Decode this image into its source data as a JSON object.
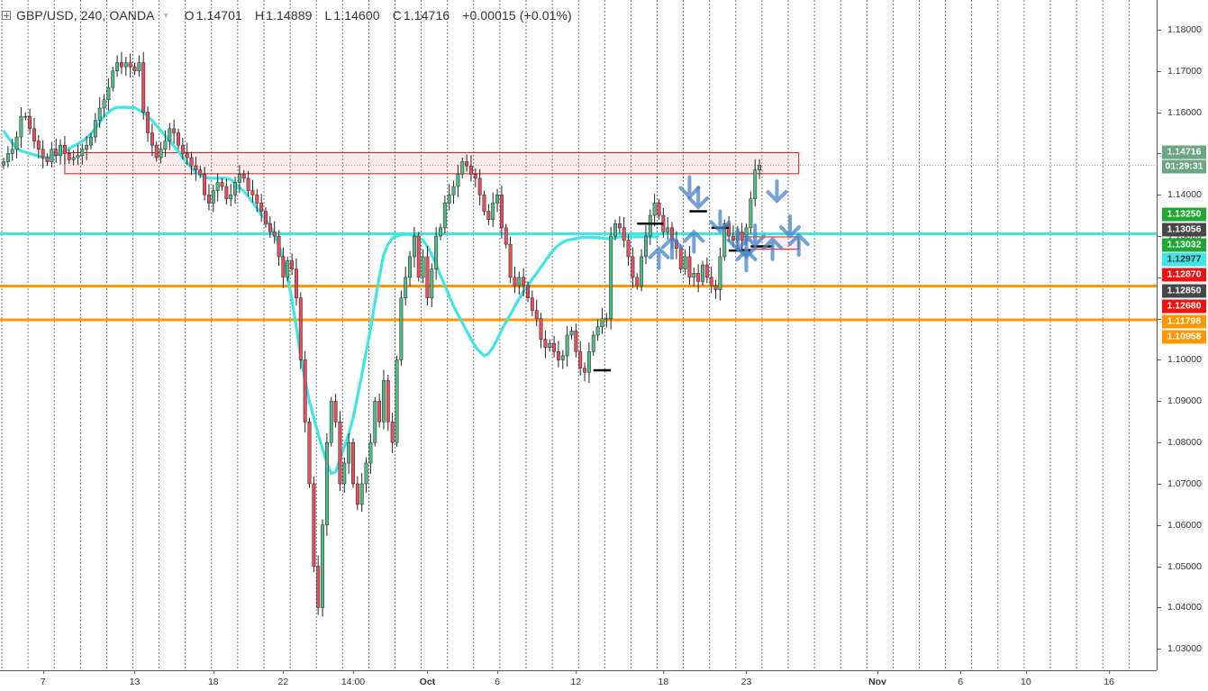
{
  "legend": {
    "symbol": "GBP/USD, 240, OANDA",
    "open_label": "O",
    "open": "1.14701",
    "high_label": "H",
    "high": "1.14889",
    "low_label": "L",
    "low": "1.14600",
    "close_label": "C",
    "close": "1.14716",
    "change": "+0.00015 (+0.01%)"
  },
  "chart_data": {
    "type": "candlestick",
    "title": "GBP/USD, 240, OANDA",
    "ylim": [
      1.027,
      1.185
    ],
    "y_ticks": [
      "1.18000",
      "1.17000",
      "1.16000",
      "1.15000",
      "1.14000",
      "1.13000",
      "1.12000",
      "1.11000",
      "1.10000",
      "1.09000",
      "1.08000",
      "1.07000",
      "1.06000",
      "1.05000",
      "1.04000",
      "1.03000"
    ],
    "x_ticks": [
      "7",
      "13",
      "18",
      "22",
      "14:00",
      "Oct",
      "6",
      "12",
      "18",
      "23",
      "Nov",
      "6",
      "10",
      "16"
    ],
    "x_tick_bar_index": [
      9,
      30,
      48,
      64,
      80,
      97,
      113,
      131,
      151,
      170,
      200,
      219,
      234,
      253
    ],
    "price_labels": [
      {
        "value": "1.14716",
        "color": "#6ba583",
        "text_color": "#ffffff"
      },
      {
        "value": "01:29:31",
        "color": "#6ba583",
        "text_color": "#ffffff",
        "attach": "1.14716"
      },
      {
        "value": "1.13250",
        "color": "#1ea833",
        "text_color": "#ffffff"
      },
      {
        "value": "1.13056",
        "color": "#474747",
        "text_color": "#ffffff"
      },
      {
        "value": "1.13032",
        "color": "#1ea833",
        "text_color": "#ffffff"
      },
      {
        "value": "1.12977",
        "color": "#40e5e5",
        "text_color": "#333333"
      },
      {
        "value": "1.12870",
        "color": "#ee1111",
        "text_color": "#ffffff"
      },
      {
        "value": "1.12850",
        "color": "#474747",
        "text_color": "#ffffff"
      },
      {
        "value": "1.12680",
        "color": "#ee1111",
        "text_color": "#ffffff"
      },
      {
        "value": "1.11798",
        "color": "#ff9800",
        "text_color": "#ffffff"
      },
      {
        "value": "1.10958",
        "color": "#ff9800",
        "text_color": "#ffffff"
      }
    ],
    "horizontal_lines": [
      {
        "value": 1.13056,
        "color": "#40e5e5",
        "style": "solid"
      },
      {
        "value": 1.1179,
        "color": "#ff9800",
        "style": "solid"
      },
      {
        "value": 1.1097,
        "color": "#ff9800",
        "style": "solid"
      },
      {
        "value": 1.14716,
        "color": "#888888",
        "style": "dotted"
      }
    ],
    "zones": [
      {
        "from_bar": 14,
        "to_bar": 182,
        "top": 1.1502,
        "bottom": 1.1451,
        "color": "#ee1111"
      },
      {
        "from_bar": 169,
        "to_bar": 182,
        "top": 1.1298,
        "bottom": 1.1268,
        "color": "#ee1111"
      }
    ],
    "separators_every_bars": 6,
    "candle_colors": {
      "up": "#53b987",
      "down": "#eb4d5c",
      "wick": "#222222"
    },
    "moving_average": {
      "color": "#40e5e5"
    },
    "ma_values": [
      1.1555,
      1.154,
      1.1525,
      1.1513,
      1.1506,
      1.1503,
      1.15,
      1.1497,
      1.1494,
      1.149,
      1.149,
      1.1493,
      1.1497,
      1.15,
      1.1505,
      1.1512,
      1.1518,
      1.1523,
      1.153,
      1.1538,
      1.1548,
      1.156,
      1.1575,
      1.159,
      1.16,
      1.1608,
      1.1612,
      1.1612,
      1.1612,
      1.1611,
      1.1611,
      1.1605,
      1.16,
      1.159,
      1.158,
      1.1568,
      1.1555,
      1.1543,
      1.153,
      1.1518,
      1.1505,
      1.149,
      1.1478,
      1.1465,
      1.1455,
      1.1448,
      1.1443,
      1.144,
      1.144,
      1.144,
      1.144,
      1.144,
      1.1437,
      1.1428,
      1.1418,
      1.1408,
      1.1396,
      1.1382,
      1.1367,
      1.1352,
      1.134,
      1.1325,
      1.1305,
      1.1278,
      1.1245,
      1.12,
      1.1145,
      1.108,
      1.101,
      1.095,
      1.09,
      1.086,
      1.082,
      1.0785,
      1.075,
      1.0725,
      1.0728,
      1.076,
      1.079,
      1.082,
      1.086,
      1.091,
      1.0965,
      1.102,
      1.1075,
      1.114,
      1.12,
      1.1255,
      1.128,
      1.1295,
      1.13,
      1.1303,
      1.1304,
      1.1304,
      1.1302,
      1.1297,
      1.129,
      1.1275,
      1.1255,
      1.123,
      1.1205,
      1.118,
      1.1155,
      1.113,
      1.111,
      1.109,
      1.107,
      1.105,
      1.1032,
      1.102,
      1.101,
      1.1015,
      1.103,
      1.105,
      1.1072,
      1.1092,
      1.111,
      1.113,
      1.1148,
      1.1165,
      1.118,
      1.1195,
      1.121,
      1.1225,
      1.124,
      1.1255,
      1.1268,
      1.1278,
      1.1285,
      1.129,
      1.1292,
      1.1294,
      1.1296,
      1.1297,
      1.1297,
      1.1297,
      1.1296,
      1.1295,
      1.1294,
      1.1294,
      1.1296,
      1.1298,
      1.1298,
      1.1298,
      1.1298,
      1.1298,
      1.1298,
      1.1298,
      1.1298,
      1.1298,
      1.1298
    ],
    "candles_close": [
      1.148,
      1.15,
      1.151,
      1.154,
      1.159,
      1.159,
      1.156,
      1.153,
      1.151,
      1.149,
      1.148,
      1.151,
      1.1495,
      1.152,
      1.15,
      1.1485,
      1.149,
      1.1495,
      1.151,
      1.152,
      1.154,
      1.158,
      1.161,
      1.163,
      1.166,
      1.17,
      1.172,
      1.171,
      1.172,
      1.171,
      1.17,
      1.172,
      1.16,
      1.155,
      1.152,
      1.149,
      1.151,
      1.153,
      1.156,
      1.155,
      1.152,
      1.15,
      1.149,
      1.147,
      1.146,
      1.145,
      1.14,
      1.138,
      1.141,
      1.143,
      1.142,
      1.139,
      1.14,
      1.143,
      1.145,
      1.144,
      1.141,
      1.14,
      1.138,
      1.136,
      1.133,
      1.131,
      1.13,
      1.125,
      1.12,
      1.124,
      1.122,
      1.115,
      1.1,
      1.085,
      1.07,
      1.05,
      1.04,
      1.06,
      1.08,
      1.09,
      1.085,
      1.07,
      1.075,
      1.08,
      1.07,
      1.065,
      1.07,
      1.075,
      1.08,
      1.09,
      1.085,
      1.095,
      1.085,
      1.08,
      1.1,
      1.115,
      1.12,
      1.125,
      1.13,
      1.12,
      1.125,
      1.115,
      1.122,
      1.13,
      1.132,
      1.138,
      1.14,
      1.142,
      1.145,
      1.148,
      1.147,
      1.145,
      1.144,
      1.14,
      1.136,
      1.134,
      1.138,
      1.14,
      1.132,
      1.128,
      1.12,
      1.118,
      1.12,
      1.118,
      1.115,
      1.112,
      1.11,
      1.105,
      1.103,
      1.104,
      1.102,
      1.1,
      1.101,
      1.106,
      1.107,
      1.102,
      1.098,
      1.097,
      1.102,
      1.106,
      1.108,
      1.11,
      1.11,
      1.13,
      1.133,
      1.132,
      1.129,
      1.125,
      1.12,
      1.118,
      1.125,
      1.13,
      1.135,
      1.138,
      1.135,
      1.131,
      1.132,
      1.129,
      1.127,
      1.122,
      1.125,
      1.12,
      1.121,
      1.119,
      1.123,
      1.12,
      1.118,
      1.117,
      1.125,
      1.133,
      1.13,
      1.129,
      1.131,
      1.129,
      1.132,
      1.139,
      1.146,
      1.1472
    ]
  }
}
